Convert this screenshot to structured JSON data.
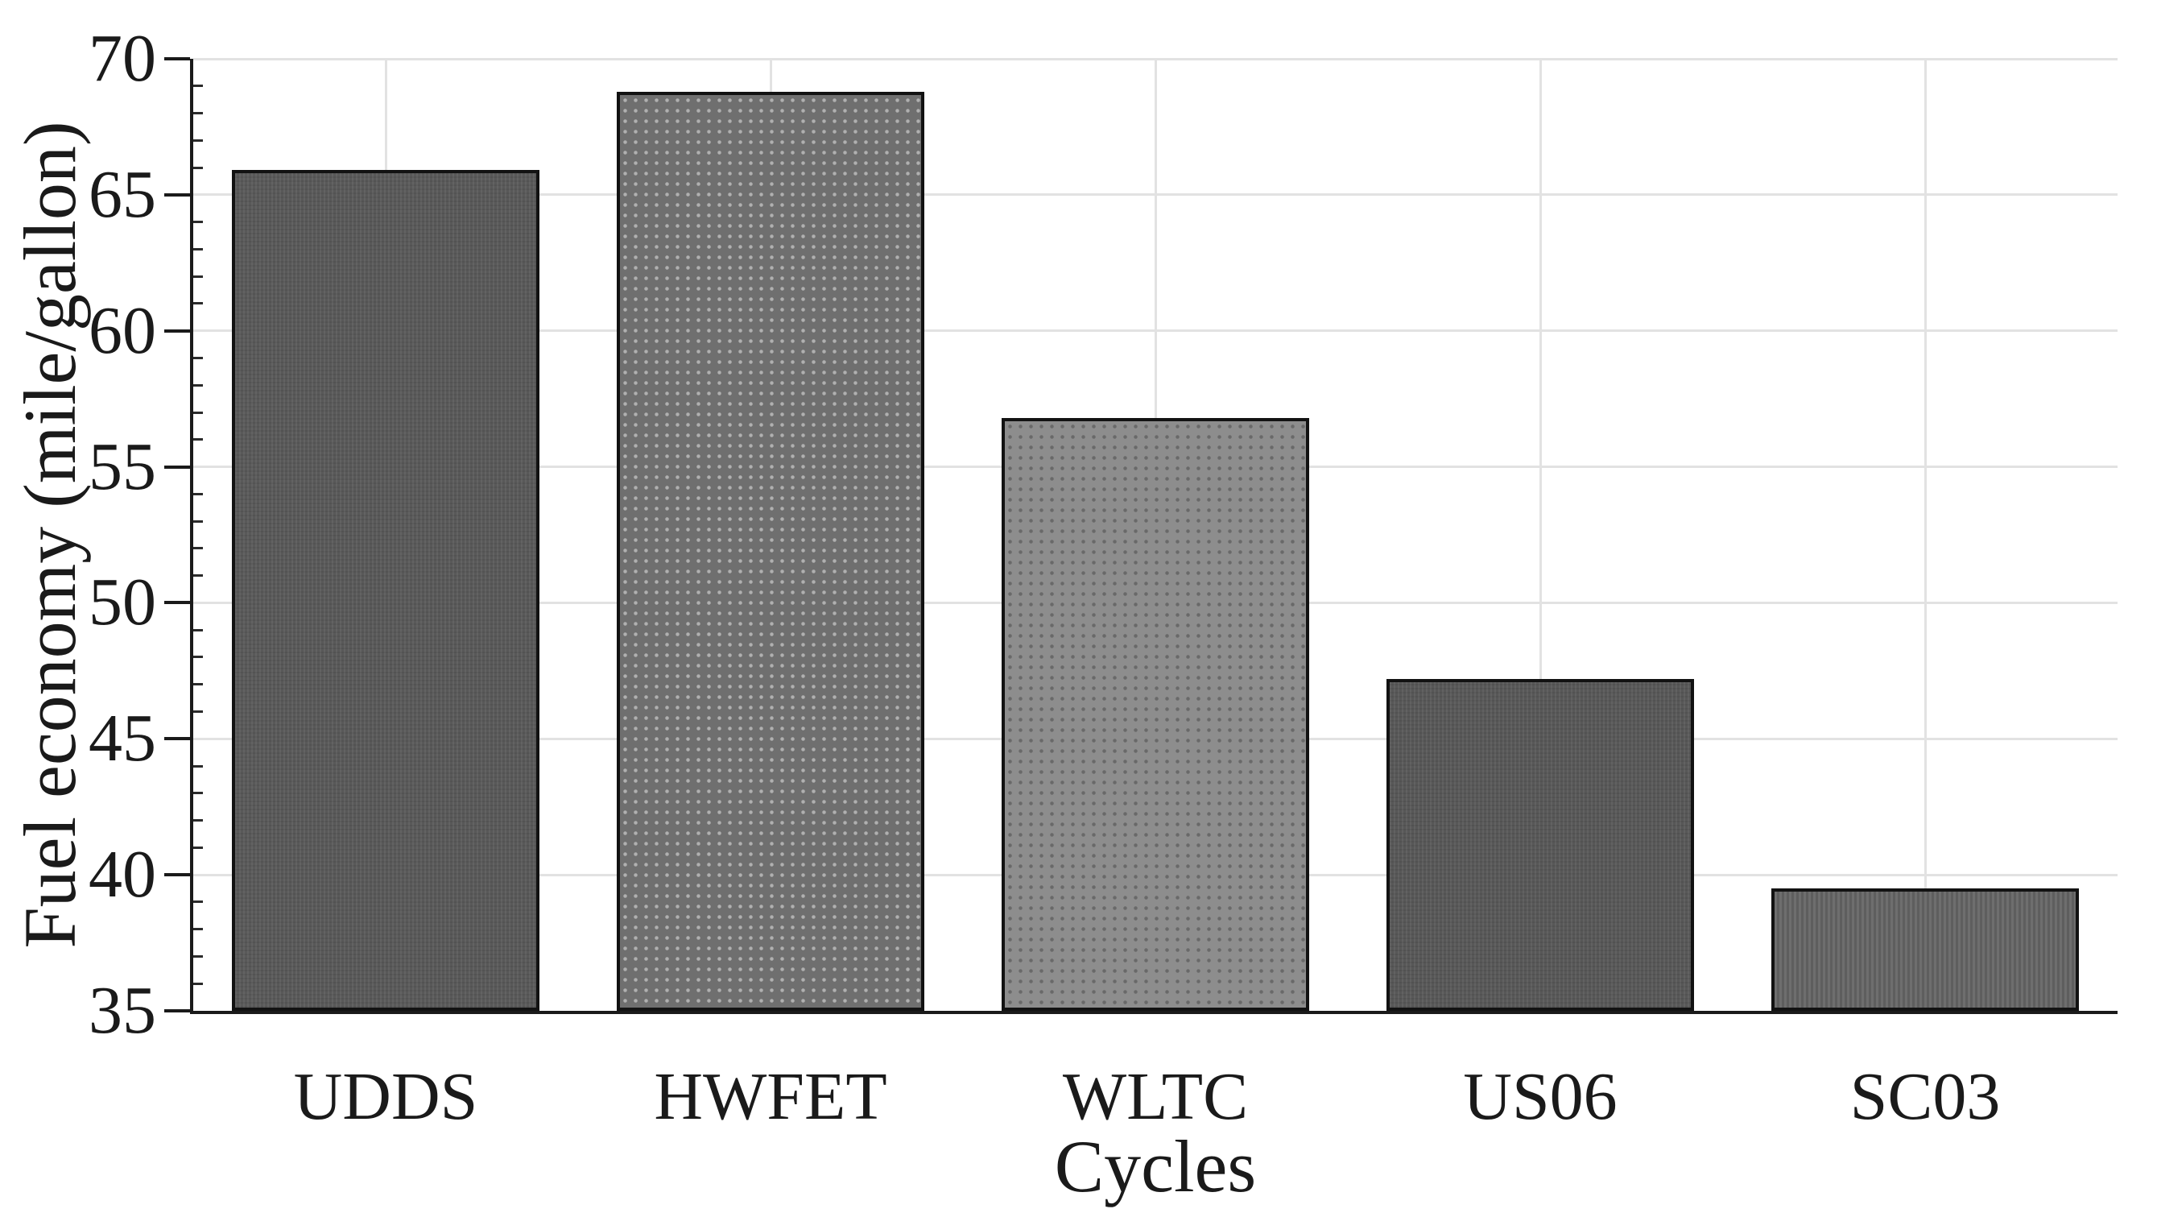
{
  "chart_data": {
    "type": "bar",
    "title": "",
    "xlabel": "Cycles",
    "ylabel": "Fuel economy (mile/gallon)",
    "categories": [
      "UDDS",
      "HWFET",
      "WLTC",
      "US06",
      "SC03"
    ],
    "values": [
      65.9,
      68.8,
      56.8,
      47.2,
      39.5
    ],
    "ylim": [
      35,
      70
    ],
    "yticks": [
      35,
      40,
      45,
      50,
      55,
      60,
      65,
      70
    ],
    "ytick_step": 5,
    "y_minor_ticks": true,
    "grid": "on",
    "legend": "none",
    "bar_width_fraction": 0.8,
    "bar_colors": [
      "#595959",
      "#6f6f6f",
      "#8d8d8d",
      "#585858",
      "#636363"
    ],
    "bar_textures": [
      "weave",
      "dots-light",
      "dots-dark",
      "weave",
      "stripes"
    ],
    "bar_border_color": "#121212",
    "grid_color": "#e2e2e2",
    "axis_color": "#1a1a1a",
    "text_color": "#1a1a1a",
    "background_color": "#ffffff"
  }
}
